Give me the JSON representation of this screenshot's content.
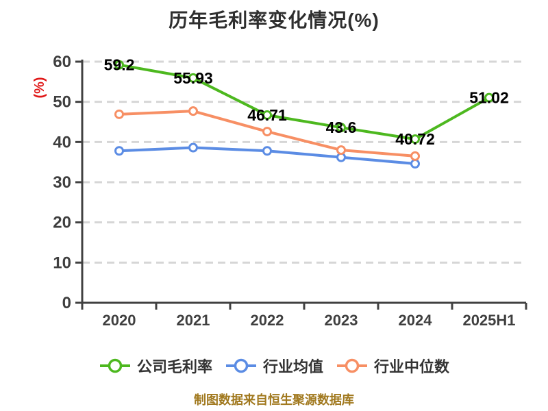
{
  "title": "历年毛利率变化情况(%)",
  "footer_note": "制图数据来自恒生聚源数据库",
  "colors": {
    "background": "#ffffff",
    "title": "#2e2e2e",
    "axis": "#414141",
    "tick_label": "#3f3f3f",
    "grid": "#d6d6d6",
    "data_label": "#000000",
    "y_unit_label": "#e01818",
    "legend_text": "#333333",
    "footer": "#a1791f"
  },
  "chart_data": {
    "type": "line",
    "title": "历年毛利率变化情况(%)",
    "ylabel": "(%)",
    "xlabel": "",
    "categories": [
      "2020",
      "2021",
      "2022",
      "2023",
      "2024",
      "2025H1"
    ],
    "ylim": [
      0,
      60
    ],
    "y_ticks": [
      0,
      10,
      20,
      30,
      40,
      50,
      60
    ],
    "grid": "horizontal-dashed",
    "legend_position": "bottom",
    "series": [
      {
        "id": "company-gross-margin",
        "name": "公司毛利率",
        "color": "#4db81f",
        "values": [
          59.2,
          55.93,
          46.71,
          43.6,
          40.72,
          51.02
        ],
        "point_labels": [
          "59.2",
          "55.93",
          "46.71",
          "43.6",
          "40.72",
          "51.02"
        ]
      },
      {
        "id": "industry-average",
        "name": "行业均值",
        "color": "#5b8ce4",
        "values": [
          37.8,
          38.6,
          37.8,
          36.2,
          34.6,
          null
        ],
        "point_labels": null
      },
      {
        "id": "industry-median",
        "name": "行业中位数",
        "color": "#f78f64",
        "values": [
          46.9,
          47.7,
          42.6,
          38.0,
          36.5,
          null
        ],
        "point_labels": null
      }
    ]
  }
}
